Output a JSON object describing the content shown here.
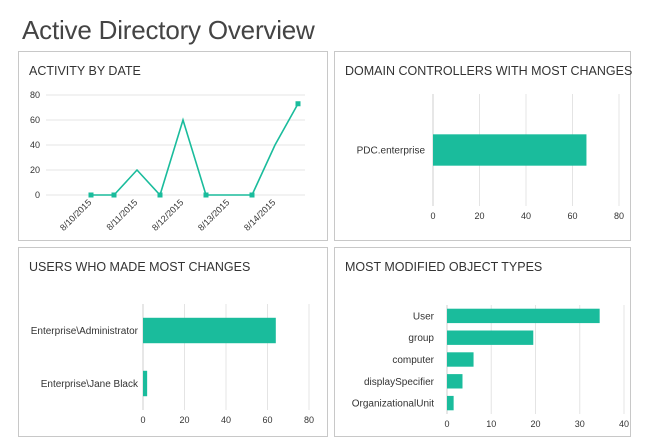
{
  "page": {
    "title": "Active Directory Overview"
  },
  "colors": {
    "accent": "#1ABC9C",
    "border": "#C8C8C8",
    "grid": "#E4E4E4"
  },
  "panels": {
    "activity": {
      "title": "ACTIVITY BY DATE"
    },
    "dcs": {
      "title": "DOMAIN CONTROLLERS WITH MOST CHANGES"
    },
    "users": {
      "title": "USERS WHO MADE MOST CHANGES"
    },
    "types": {
      "title": "MOST MODIFIED OBJECT TYPES"
    }
  },
  "chart_data": [
    {
      "id": "activity",
      "type": "line",
      "title": "ACTIVITY BY DATE",
      "x": [
        "8/10/2015",
        "8/11/2015",
        "8/11/2015",
        "8/12/2015",
        "8/12/2015",
        "8/13/2015",
        "8/13/2015",
        "8/14/2015",
        "8/14/2015",
        "8/15/2015"
      ],
      "x_ticks": [
        "8/10/2015",
        "8/11/2015",
        "8/12/2015",
        "8/13/2015",
        "8/14/2015"
      ],
      "values": [
        0,
        0,
        20,
        0,
        60,
        0,
        0,
        0,
        40,
        73
      ],
      "markers": [
        true,
        true,
        false,
        true,
        false,
        true,
        false,
        true,
        false,
        true
      ],
      "ylim": [
        0,
        80
      ],
      "yticks": [
        0,
        20,
        40,
        60,
        80
      ],
      "grid": true
    },
    {
      "id": "dcs",
      "type": "bar",
      "orientation": "horizontal",
      "title": "DOMAIN CONTROLLERS WITH MOST CHANGES",
      "categories": [
        "PDC.enterprise"
      ],
      "values": [
        66
      ],
      "xlim": [
        0,
        80
      ],
      "xticks": [
        0,
        20,
        40,
        60,
        80
      ],
      "grid": true
    },
    {
      "id": "users",
      "type": "bar",
      "orientation": "horizontal",
      "title": "USERS WHO MADE MOST CHANGES",
      "categories": [
        "Enterprise\\Administrator",
        "Enterprise\\Jane Black"
      ],
      "values": [
        64,
        2
      ],
      "xlim": [
        0,
        80
      ],
      "xticks": [
        0,
        20,
        40,
        60,
        80
      ],
      "grid": true
    },
    {
      "id": "types",
      "type": "bar",
      "orientation": "horizontal",
      "title": "MOST MODIFIED OBJECT TYPES",
      "categories": [
        "User",
        "group",
        "computer",
        "displaySpecifier",
        "OrganizationalUnit"
      ],
      "values": [
        34.5,
        19.5,
        6,
        3.5,
        1.5
      ],
      "xlim": [
        0,
        40
      ],
      "xticks": [
        0,
        10,
        20,
        30,
        40
      ],
      "grid": true
    }
  ]
}
